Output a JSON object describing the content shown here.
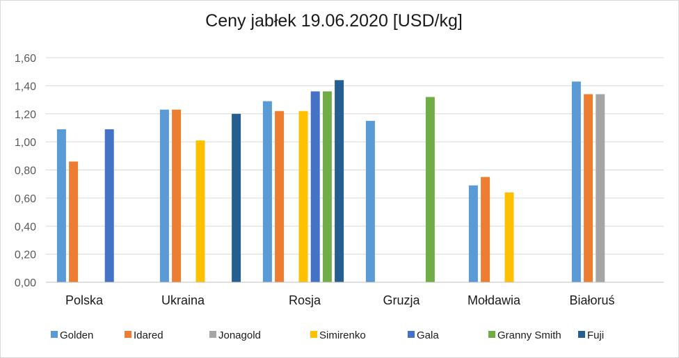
{
  "chart_data": {
    "type": "bar",
    "title": "Ceny jabłek 19.06.2020 [USD/kg]",
    "xlabel": "",
    "ylabel": "",
    "ylim": [
      0,
      1.6
    ],
    "yticks": [
      "0,00",
      "0,20",
      "0,40",
      "0,60",
      "0,80",
      "1,00",
      "1,20",
      "1,40",
      "1,60"
    ],
    "grid": true,
    "legend_position": "bottom",
    "categories": [
      "Polska",
      "Ukraina",
      "Rosja",
      "Gruzja",
      "Mołdawia",
      "Białoruś"
    ],
    "series": [
      {
        "name": "Golden",
        "color": "#5B9BD5",
        "values": [
          1.09,
          1.23,
          1.29,
          1.15,
          0.69,
          1.43
        ]
      },
      {
        "name": "Idared",
        "color": "#ED7D31",
        "values": [
          0.86,
          1.23,
          1.22,
          null,
          0.75,
          1.34
        ]
      },
      {
        "name": "Jonagold",
        "color": "#A5A5A5",
        "values": [
          null,
          null,
          null,
          null,
          null,
          1.34
        ]
      },
      {
        "name": "Simirenko",
        "color": "#FFC000",
        "values": [
          null,
          1.01,
          1.22,
          null,
          0.64,
          null
        ]
      },
      {
        "name": "Gala",
        "color": "#4472C4",
        "values": [
          1.09,
          null,
          1.36,
          null,
          null,
          null
        ]
      },
      {
        "name": "Granny Smith",
        "color": "#70AD47",
        "values": [
          null,
          null,
          1.36,
          1.32,
          null,
          null
        ]
      },
      {
        "name": "Fuji",
        "color": "#255E91",
        "values": [
          null,
          1.2,
          1.44,
          null,
          null,
          null
        ]
      }
    ]
  }
}
